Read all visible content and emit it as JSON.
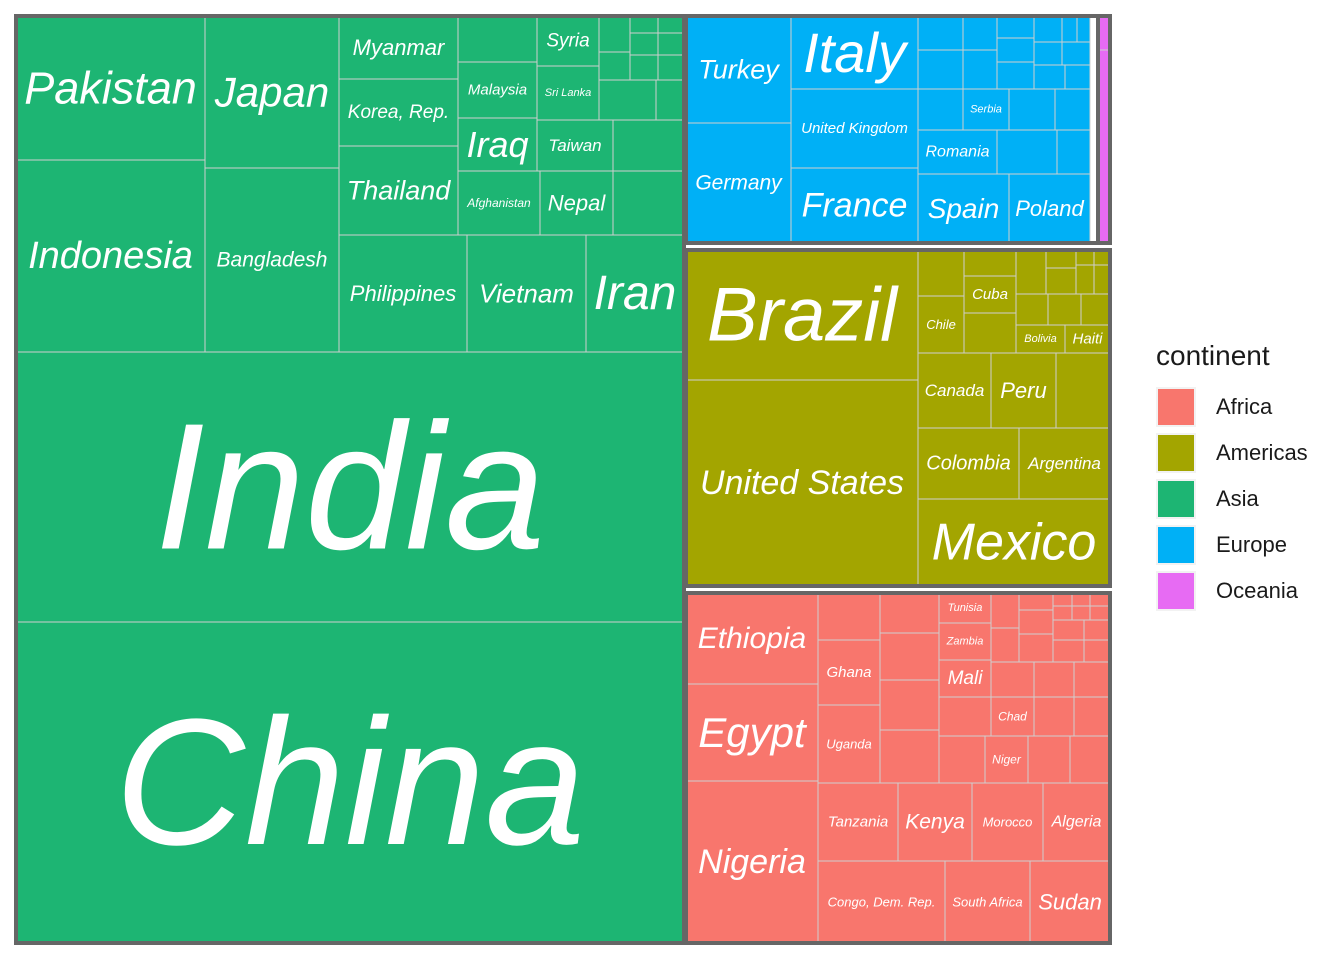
{
  "chart_data": {
    "type": "treemap",
    "title": "",
    "legend": {
      "title": "continent",
      "position": "right"
    },
    "colors": {
      "Africa": "#F8766D",
      "Americas": "#A3A500",
      "Asia": "#1DB573",
      "Europe": "#00B0F6",
      "Oceania": "#E76BF3"
    },
    "continents": [
      "Africa",
      "Americas",
      "Asia",
      "Europe",
      "Oceania"
    ],
    "groups": [
      {
        "continent": "Asia",
        "countries": [
          "China",
          "India",
          "Indonesia",
          "Pakistan",
          "Bangladesh",
          "Japan",
          "Philippines",
          "Vietnam",
          "Iran",
          "Thailand",
          "Korea, Rep.",
          "Myanmar",
          "Afghanistan",
          "Nepal",
          "Iraq",
          "Malaysia",
          "Taiwan",
          "Sri Lanka",
          "Syria"
        ]
      },
      {
        "continent": "Europe",
        "countries": [
          "Germany",
          "Turkey",
          "France",
          "United Kingdom",
          "Italy",
          "Spain",
          "Poland",
          "Romania",
          "Serbia"
        ]
      },
      {
        "continent": "Americas",
        "countries": [
          "United States",
          "Brazil",
          "Mexico",
          "Colombia",
          "Argentina",
          "Canada",
          "Peru",
          "Chile",
          "Cuba",
          "Bolivia",
          "Haiti"
        ]
      },
      {
        "continent": "Africa",
        "countries": [
          "Nigeria",
          "Egypt",
          "Ethiopia",
          "Congo, Dem. Rep.",
          "South Africa",
          "Sudan",
          "Tanzania",
          "Kenya",
          "Morocco",
          "Algeria",
          "Uganda",
          "Ghana",
          "Mali",
          "Niger",
          "Chad",
          "Zambia",
          "Tunisia"
        ]
      },
      {
        "continent": "Oceania",
        "countries": []
      }
    ]
  }
}
